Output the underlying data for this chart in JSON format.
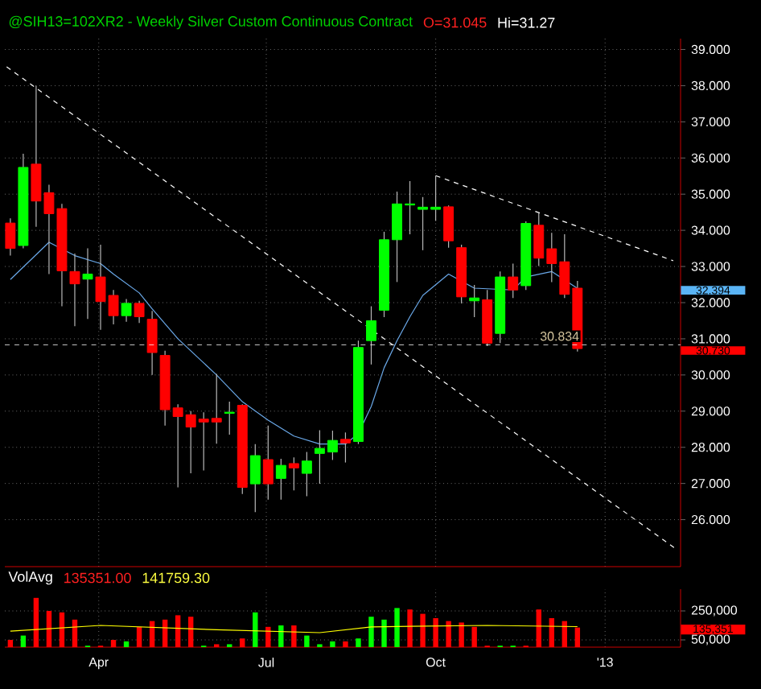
{
  "chart_data": [
    {
      "type": "candlestick",
      "title": "@SIH13=102XR2 - Weekly  Silver Custom Continuous Contract",
      "annotations": [
        "O=31.045",
        "Hi=31.27",
        "32.394",
        "30.730"
      ],
      "x": [
        "2012-02-13",
        "2012-02-20",
        "2012-02-27",
        "2012-03-05",
        "2012-03-12",
        "2012-03-19",
        "2012-03-26",
        "2012-04-02",
        "2012-04-09",
        "2012-04-16",
        "2012-04-23",
        "2012-04-30",
        "2012-05-07",
        "2012-05-14",
        "2012-05-21",
        "2012-05-28",
        "2012-06-04",
        "2012-06-11",
        "2012-06-18",
        "2012-06-25",
        "2012-07-02",
        "2012-07-09",
        "2012-07-16",
        "2012-07-23",
        "2012-07-30",
        "2012-08-06",
        "2012-08-13",
        "2012-08-20",
        "2012-08-27",
        "2012-09-03",
        "2012-09-10",
        "2012-09-17",
        "2012-09-24",
        "2012-10-01",
        "2012-10-08",
        "2012-10-15",
        "2012-10-22",
        "2012-10-29",
        "2012-11-05",
        "2012-11-12",
        "2012-11-19",
        "2012-11-26",
        "2012-12-03",
        "2012-12-10",
        "2012-12-17"
      ],
      "ohlc": [
        [
          34.2,
          34.33,
          33.3,
          33.5
        ],
        [
          33.58,
          36.12,
          33.5,
          35.74
        ],
        [
          35.83,
          38.0,
          34.1,
          34.81
        ],
        [
          35.04,
          35.26,
          32.79,
          34.46
        ],
        [
          34.6,
          34.73,
          31.9,
          32.88
        ],
        [
          32.86,
          33.36,
          31.35,
          32.52
        ],
        [
          32.65,
          33.5,
          31.55,
          32.79
        ],
        [
          32.71,
          33.6,
          31.25,
          32.03
        ],
        [
          32.2,
          32.35,
          31.4,
          31.64
        ],
        [
          31.64,
          32.1,
          31.47,
          31.98
        ],
        [
          31.98,
          32.05,
          31.44,
          31.61
        ],
        [
          31.54,
          31.77,
          30.0,
          30.62
        ],
        [
          30.54,
          30.67,
          28.6,
          29.04
        ],
        [
          29.09,
          29.19,
          26.89,
          28.85
        ],
        [
          28.9,
          29.0,
          27.28,
          28.56
        ],
        [
          28.78,
          28.97,
          27.36,
          28.7
        ],
        [
          28.8,
          30.03,
          28.1,
          28.7
        ],
        [
          28.94,
          29.26,
          28.35,
          28.97
        ],
        [
          29.16,
          29.19,
          26.71,
          26.89
        ],
        [
          26.99,
          28.09,
          26.21,
          27.77
        ],
        [
          27.66,
          28.6,
          26.55,
          26.99
        ],
        [
          27.14,
          27.68,
          26.55,
          27.5
        ],
        [
          27.55,
          27.72,
          26.81,
          27.43
        ],
        [
          27.28,
          27.87,
          26.65,
          27.62
        ],
        [
          27.83,
          28.47,
          26.99,
          27.97
        ],
        [
          27.87,
          28.46,
          27.65,
          28.19
        ],
        [
          28.22,
          28.41,
          27.58,
          28.12
        ],
        [
          28.16,
          30.95,
          28.09,
          30.76
        ],
        [
          30.95,
          31.9,
          30.29,
          31.5
        ],
        [
          31.79,
          33.96,
          31.6,
          33.74
        ],
        [
          33.74,
          35.07,
          32.57,
          34.73
        ],
        [
          34.7,
          35.36,
          33.89,
          34.73
        ],
        [
          34.58,
          34.92,
          33.45,
          34.64
        ],
        [
          34.58,
          35.51,
          34.26,
          34.64
        ],
        [
          34.65,
          34.69,
          33.52,
          33.71
        ],
        [
          33.52,
          33.6,
          31.98,
          32.16
        ],
        [
          32.05,
          32.49,
          31.6,
          32.13
        ],
        [
          32.08,
          32.35,
          30.8,
          30.88
        ],
        [
          31.15,
          32.86,
          30.88,
          32.71
        ],
        [
          32.71,
          33.08,
          32.13,
          32.35
        ],
        [
          32.47,
          34.25,
          32.35,
          34.19
        ],
        [
          34.14,
          34.47,
          33.01,
          33.23
        ],
        [
          33.49,
          33.93,
          32.57,
          33.08
        ],
        [
          33.13,
          33.89,
          32.13,
          32.23
        ],
        [
          32.4,
          32.6,
          30.65,
          30.73
        ]
      ],
      "colors": [
        "#ff0000",
        "#00ff00",
        "#ff0000",
        "#ff0000",
        "#ff0000",
        "#ff0000",
        "#00ff00",
        "#ff0000",
        "#ff0000",
        "#00ff00",
        "#ff0000",
        "#ff0000",
        "#ff0000",
        "#ff0000",
        "#ff0000",
        "#ff0000",
        "#ff0000",
        "#00ff00",
        "#ff0000",
        "#00ff00",
        "#ff0000",
        "#00ff00",
        "#ff0000",
        "#00ff00",
        "#00ff00",
        "#00ff00",
        "#ff0000",
        "#00ff00",
        "#00ff00",
        "#00ff00",
        "#00ff00",
        "#00ff00",
        "#00ff00",
        "#00ff00",
        "#ff0000",
        "#ff0000",
        "#00ff00",
        "#ff0000",
        "#00ff00",
        "#ff0000",
        "#00ff00",
        "#ff0000",
        "#ff0000",
        "#ff0000",
        "#ff0000"
      ],
      "series": [
        {
          "type": "line",
          "color": "#6aa8e8",
          "x": [
            "2012-02-13",
            "2012-03-05",
            "2012-03-19",
            "2012-04-02",
            "2012-04-09",
            "2012-04-23",
            "2012-04-30",
            "2012-05-14",
            "2012-06-04",
            "2012-06-18",
            "2012-07-02",
            "2012-07-16",
            "2012-07-30",
            "2012-08-13",
            "2012-08-20",
            "2012-08-27",
            "2012-09-03",
            "2012-09-10",
            "2012-09-17",
            "2012-09-24",
            "2012-10-08",
            "2012-10-22",
            "2012-11-12",
            "2012-11-19",
            "2012-12-03",
            "2012-12-17"
          ],
          "values": [
            32.64,
            33.67,
            33.3,
            33.08,
            32.79,
            32.27,
            31.83,
            31.0,
            30.0,
            29.26,
            28.75,
            28.31,
            28.09,
            28.09,
            28.38,
            29.13,
            30.2,
            30.95,
            31.61,
            32.2,
            32.79,
            32.4,
            32.35,
            32.71,
            32.86,
            32.394
          ]
        },
        {
          "type": "line",
          "color": "#ffffff",
          "line_style": "dashed",
          "x": [
            "2012-02-11",
            "2013-02-09"
          ],
          "values": [
            38.52,
            25.17
          ]
        },
        {
          "type": "line",
          "color": "#ffffff",
          "line_style": "dashed",
          "x": [
            "2012-10-01",
            "2013-02-07"
          ],
          "values": [
            35.51,
            33.16
          ]
        }
      ],
      "ref_lines": [
        {
          "axis": "y",
          "value": 30.834,
          "label": "30.834",
          "color": "#ffffff",
          "line_style": "dashed"
        }
      ],
      "xlim": [
        "2012-02-10",
        "2013-02-11"
      ],
      "xticks": [
        {
          "value": "2012-04-01",
          "label": null
        },
        {
          "value": "2012-07-01",
          "label": null
        },
        {
          "value": "2012-10-01",
          "label": null
        },
        {
          "value": "2013-01-01",
          "label": null
        }
      ],
      "ylim": [
        24.7,
        39.3
      ],
      "yticks": [
        {
          "value": 26,
          "label": "26.000"
        },
        {
          "value": 27,
          "label": "27.000"
        },
        {
          "value": 28,
          "label": "28.000"
        },
        {
          "value": 29,
          "label": "29.000"
        },
        {
          "value": 30,
          "label": "30.000"
        },
        {
          "value": 31,
          "label": "31.000"
        },
        {
          "value": 32,
          "label": "32.000"
        },
        {
          "value": 33,
          "label": "33.000"
        },
        {
          "value": 34,
          "label": "34.000"
        },
        {
          "value": 35,
          "label": "35.000"
        },
        {
          "value": 36,
          "label": "36.000"
        },
        {
          "value": 37,
          "label": "37.000"
        },
        {
          "value": 38,
          "label": "38.000"
        },
        {
          "value": 39,
          "label": "39.000"
        }
      ],
      "tick_labels": "y",
      "grid": true
    },
    {
      "type": "bar",
      "title": "VolAvg",
      "annotations": [
        "135351.00",
        "141759.30",
        "135,351"
      ],
      "x": [
        "2012-02-13",
        "2012-02-20",
        "2012-02-27",
        "2012-03-05",
        "2012-03-12",
        "2012-03-19",
        "2012-03-26",
        "2012-04-02",
        "2012-04-09",
        "2012-04-16",
        "2012-04-23",
        "2012-04-30",
        "2012-05-07",
        "2012-05-14",
        "2012-05-21",
        "2012-05-28",
        "2012-06-04",
        "2012-06-11",
        "2012-06-18",
        "2012-06-25",
        "2012-07-02",
        "2012-07-09",
        "2012-07-16",
        "2012-07-23",
        "2012-07-30",
        "2012-08-06",
        "2012-08-13",
        "2012-08-20",
        "2012-08-27",
        "2012-09-03",
        "2012-09-10",
        "2012-09-17",
        "2012-09-24",
        "2012-10-01",
        "2012-10-08",
        "2012-10-15",
        "2012-10-22",
        "2012-10-29",
        "2012-11-05",
        "2012-11-12",
        "2012-11-19",
        "2012-11-26",
        "2012-12-03",
        "2012-12-10",
        "2012-12-17"
      ],
      "series": [
        {
          "type": "bar",
          "values": [
            50000,
            80000,
            340000,
            250000,
            240000,
            190000,
            10000,
            10000,
            50000,
            40000,
            140000,
            180000,
            190000,
            220000,
            210000,
            10000,
            20000,
            20000,
            60000,
            240000,
            140000,
            150000,
            150000,
            80000,
            20000,
            40000,
            40000,
            60000,
            210000,
            190000,
            270000,
            260000,
            230000,
            200000,
            180000,
            170000,
            140000,
            10000,
            10000,
            10000,
            10000,
            260000,
            200000,
            180000,
            135351
          ],
          "colors": [
            "#ff0000",
            "#00ff00",
            "#ff0000",
            "#ff0000",
            "#ff0000",
            "#ff0000",
            "#00ff00",
            "#ff0000",
            "#ff0000",
            "#00ff00",
            "#ff0000",
            "#ff0000",
            "#ff0000",
            "#ff0000",
            "#ff0000",
            "#00ff00",
            "#ff0000",
            "#00ff00",
            "#ff0000",
            "#00ff00",
            "#ff0000",
            "#00ff00",
            "#ff0000",
            "#00ff00",
            "#00ff00",
            "#00ff00",
            "#ff0000",
            "#00ff00",
            "#00ff00",
            "#00ff00",
            "#00ff00",
            "#ff0000",
            "#ff0000",
            "#ff0000",
            "#ff0000",
            "#ff0000",
            "#ff0000",
            "#ff0000",
            "#00ff00",
            "#00ff00",
            "#ff0000",
            "#ff0000",
            "#ff0000",
            "#ff0000",
            "#ff0000"
          ]
        },
        {
          "type": "line",
          "color": "#ffff00",
          "x": [
            "2012-02-13",
            "2012-04-02",
            "2012-06-04",
            "2012-07-30",
            "2012-08-27",
            "2012-10-29",
            "2012-12-17"
          ],
          "values": [
            110000,
            150000,
            120000,
            100000,
            140000,
            150000,
            141759.3
          ]
        }
      ],
      "xlim": [
        "2012-02-10",
        "2013-02-11"
      ],
      "xticks": [
        {
          "value": "2012-04-01",
          "label": "Apr"
        },
        {
          "value": "2012-07-01",
          "label": "Jul"
        },
        {
          "value": "2012-10-01",
          "label": "Oct"
        },
        {
          "value": "2013-01-01",
          "label": "'13"
        }
      ],
      "ylim": [
        0,
        400000
      ],
      "yticks": [
        {
          "value": 50000,
          "label": "50,000"
        },
        {
          "value": 250000,
          "label": "250,000"
        }
      ],
      "grid": true
    }
  ]
}
